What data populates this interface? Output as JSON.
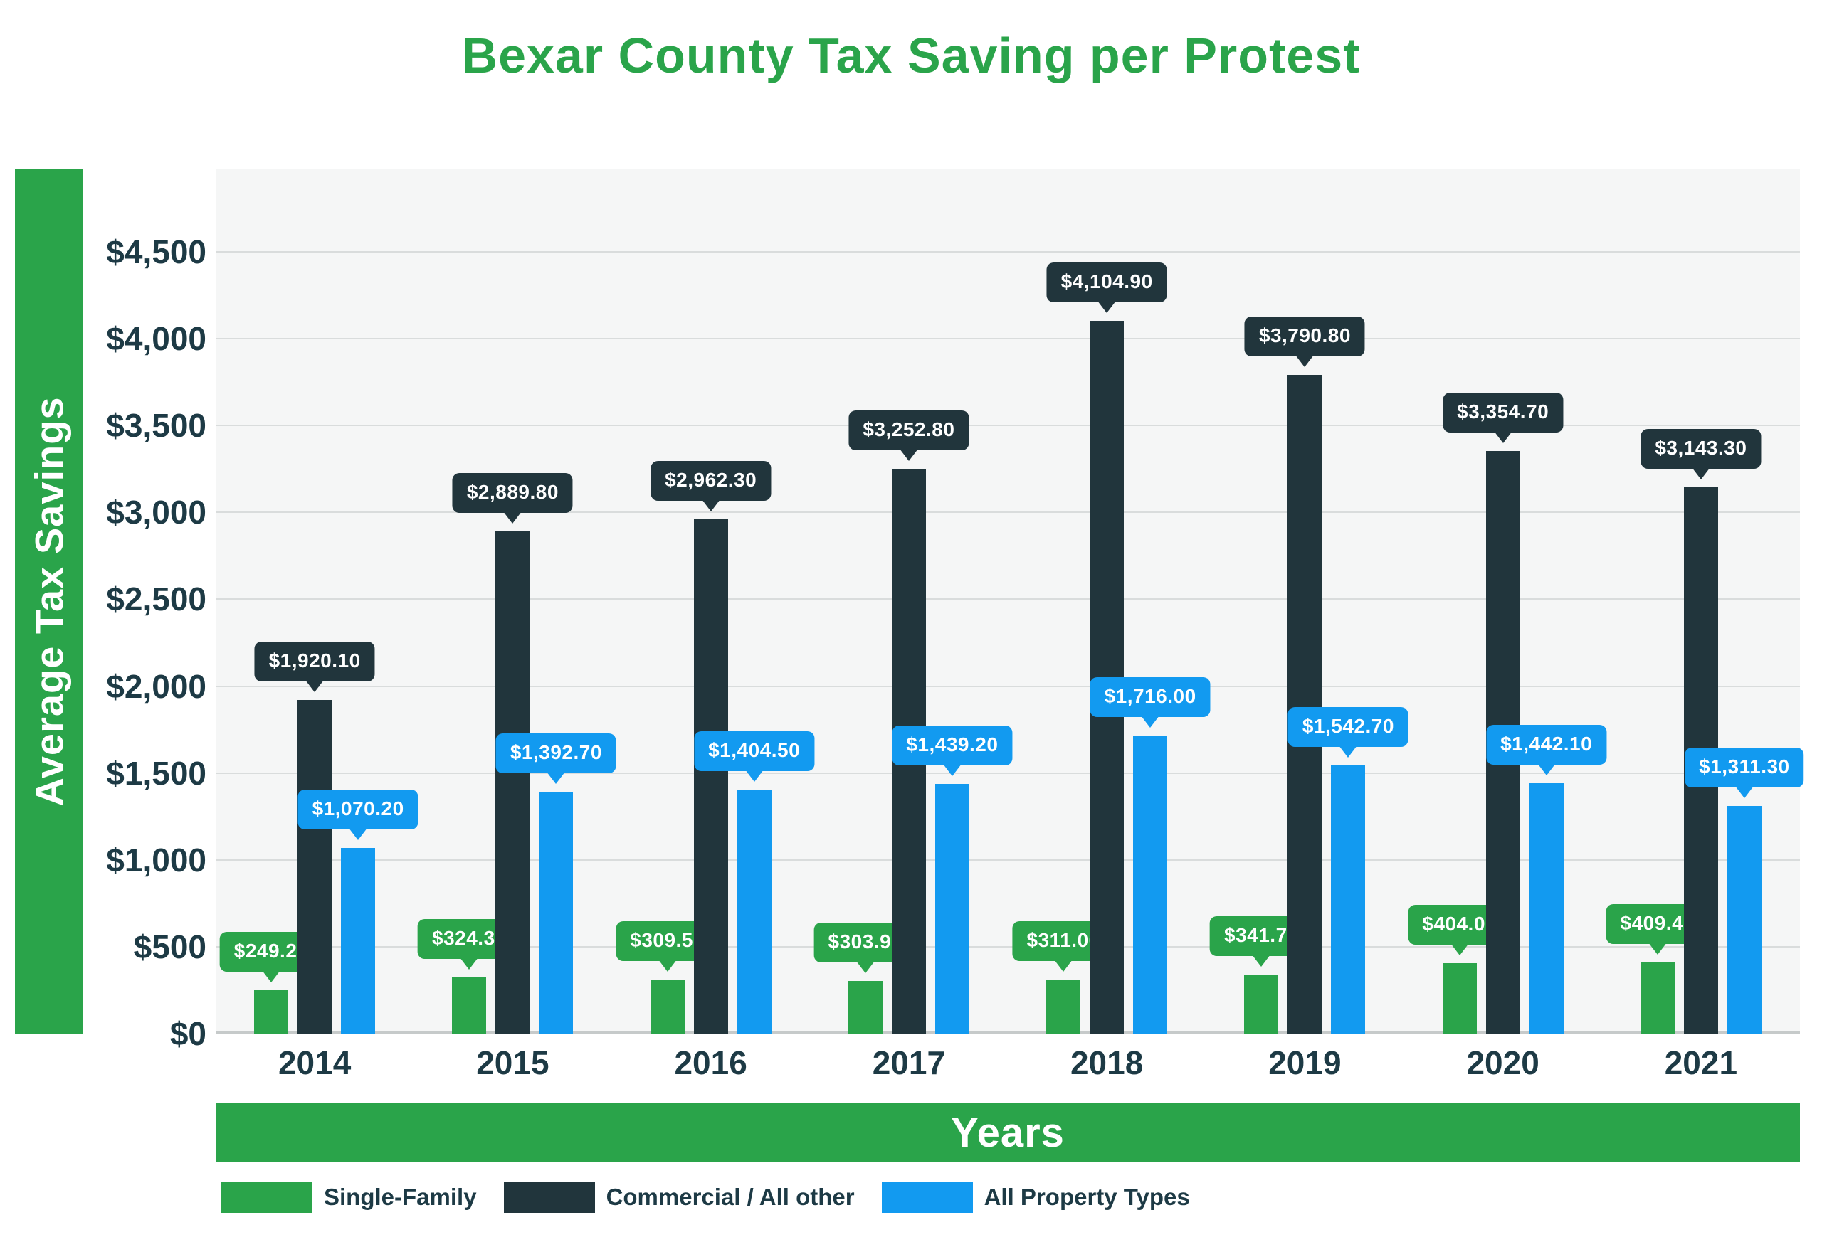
{
  "title": "Bexar County Tax Saving per Protest",
  "y_axis": {
    "label": "Average Tax Savings",
    "ticks": [
      "$0",
      "$500",
      "$1,000",
      "$1,500",
      "$2,000",
      "$2,500",
      "$3,000",
      "$3,500",
      "$4,000",
      "$4,500"
    ]
  },
  "x_axis": {
    "label": "Years"
  },
  "theme": {
    "green": "#2aa44a",
    "dark": "#21353c",
    "blue": "#129af0",
    "plot-bg": "#f5f6f6",
    "grid": "#d9dcdc",
    "grid-strong": "#c6caca",
    "text": "#1d3a45"
  },
  "chart_data": {
    "type": "bar",
    "title": "Bexar County Tax Saving per Protest",
    "xlabel": "Years",
    "ylabel": "Average Tax Savings",
    "ylim": [
      0,
      4500
    ],
    "ytick_step": 500,
    "grid": true,
    "legend_position": "bottom",
    "categories": [
      "2014",
      "2015",
      "2016",
      "2017",
      "2018",
      "2019",
      "2020",
      "2021"
    ],
    "series": [
      {
        "name": "Single-Family",
        "color": "#2aa44a",
        "values": [
          249.2,
          324.3,
          309.5,
          303.9,
          311.0,
          341.7,
          404.0,
          409.4
        ],
        "labels": [
          "$249.20",
          "$324.30",
          "$309.50",
          "$303.90",
          "$311.00",
          "$341.70",
          "$404.00",
          "$409.40"
        ]
      },
      {
        "name": "Commercial / All other",
        "color": "#21353c",
        "values": [
          1920.1,
          2889.8,
          2962.3,
          3252.8,
          4104.9,
          3790.8,
          3354.7,
          3143.3
        ],
        "labels": [
          "$1,920.10",
          "$2,889.80",
          "$2,962.30",
          "$3,252.80",
          "$4,104.90",
          "$3,790.80",
          "$3,354.70",
          "$3,143.30"
        ]
      },
      {
        "name": "All Property Types",
        "color": "#129af0",
        "values": [
          1070.2,
          1392.7,
          1404.5,
          1439.2,
          1716.0,
          1542.7,
          1442.1,
          1311.3
        ],
        "labels": [
          "$1,070.20",
          "$1,392.70",
          "$1,404.50",
          "$1,439.20",
          "$1,716.00",
          "$1,542.70",
          "$1,442.10",
          "$1,311.30"
        ]
      }
    ]
  }
}
